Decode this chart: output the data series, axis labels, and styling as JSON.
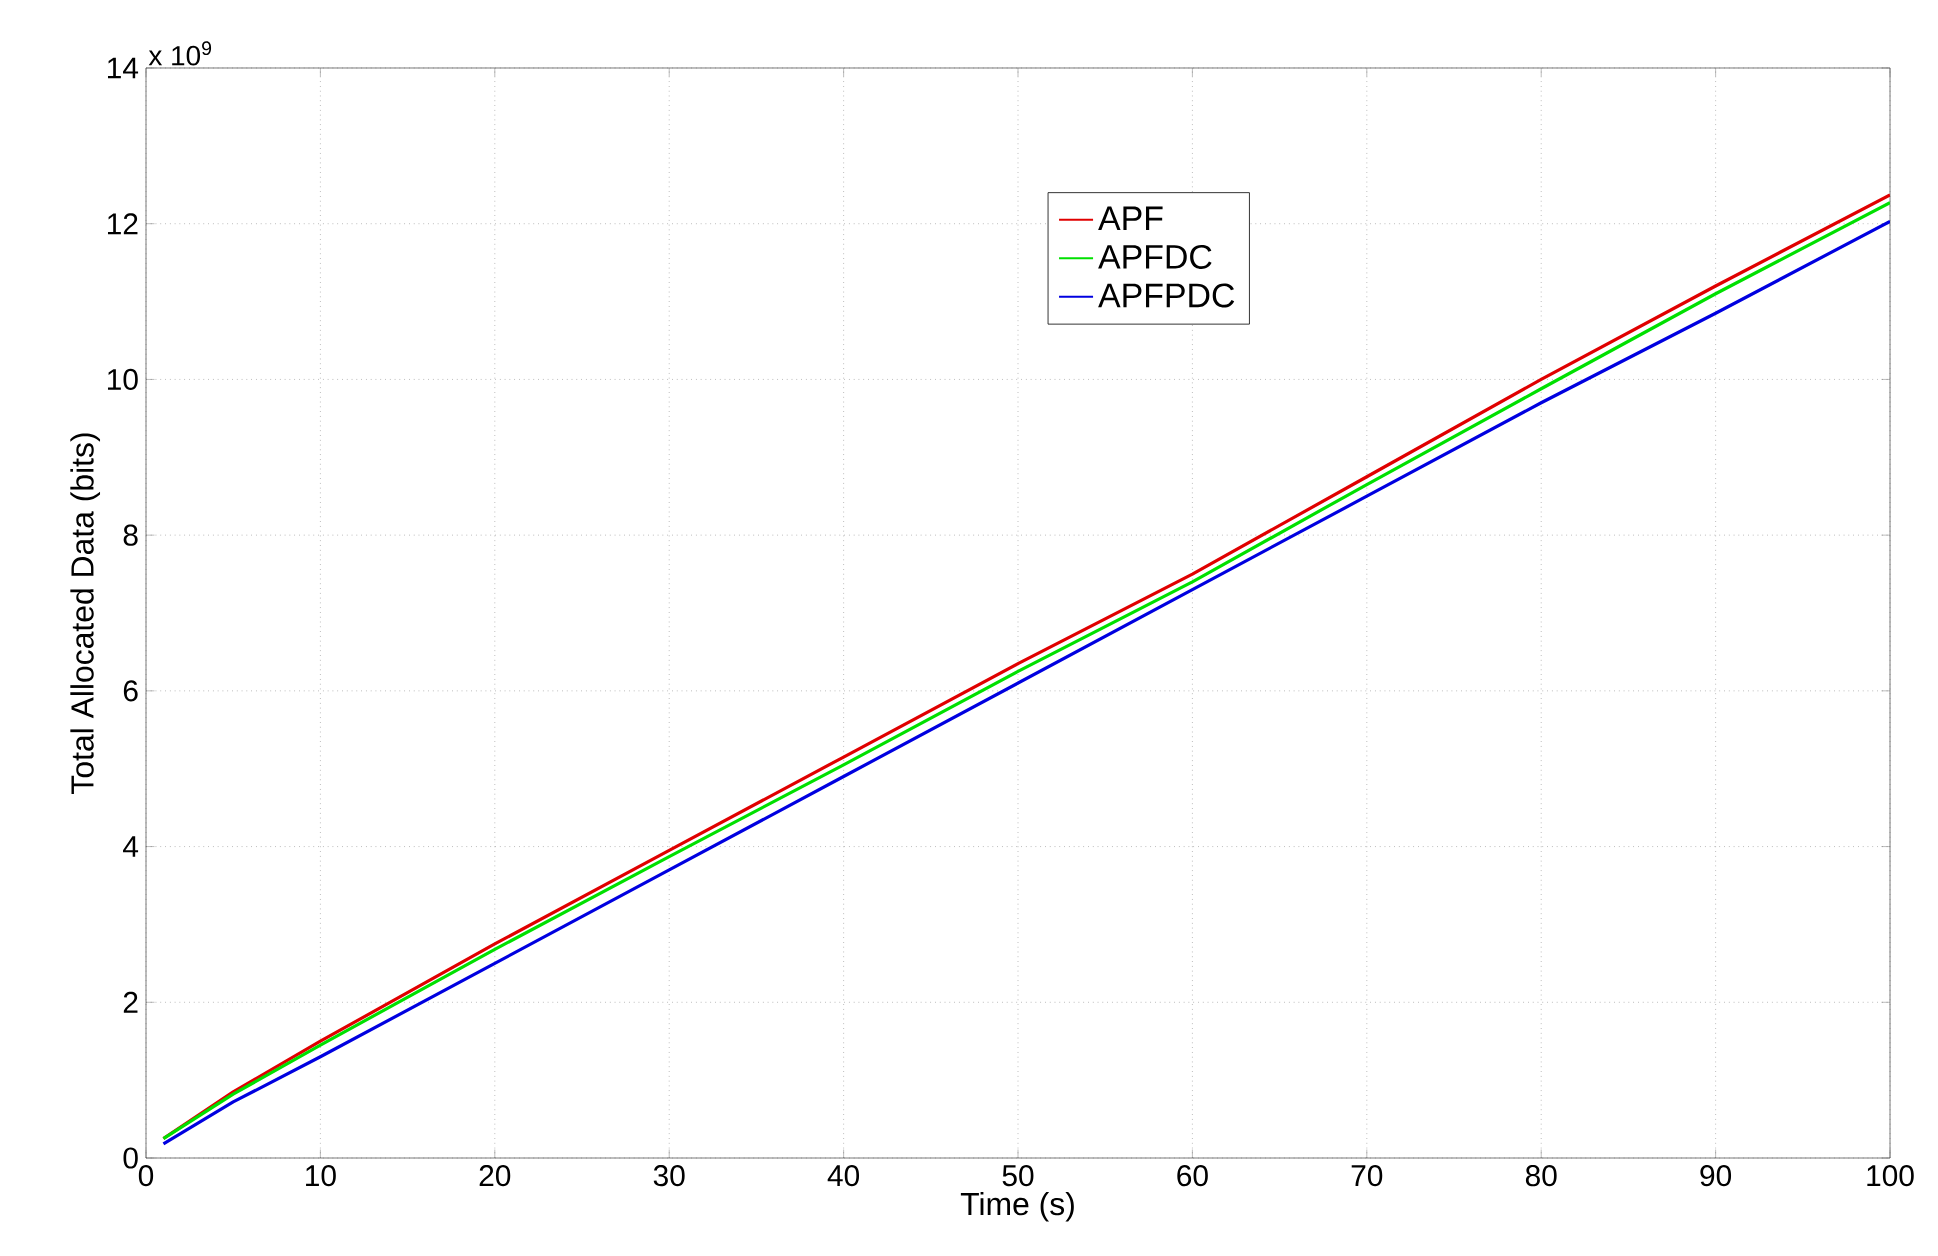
{
  "chart_data": {
    "type": "line",
    "xlabel": "Time (s)",
    "ylabel": "Total Allocated Data (bits)",
    "annotations": [
      "x 10$^{9}$"
    ],
    "xlim": [
      0,
      100
    ],
    "ylim": [
      0,
      14
    ],
    "xticks": [
      0,
      10,
      20,
      30,
      40,
      50,
      60,
      70,
      80,
      90,
      100
    ],
    "yticks": [
      0,
      2,
      4,
      6,
      8,
      10,
      12,
      14
    ],
    "grid": true,
    "legend": "top right",
    "marker": "none",
    "line_style": "solid",
    "series": [
      {
        "name": "APF",
        "color": "#e00000",
        "x": [
          1,
          5,
          10,
          20,
          30,
          40,
          50,
          60,
          70,
          80,
          90,
          100
        ],
        "values": [
          0.25,
          0.85,
          1.5,
          2.75,
          3.95,
          5.15,
          6.35,
          7.5,
          8.75,
          10.0,
          11.2,
          12.37
        ]
      },
      {
        "name": "APFDC",
        "color": "#00e000",
        "x": [
          1,
          5,
          10,
          20,
          30,
          40,
          50,
          60,
          70,
          80,
          90,
          100
        ],
        "values": [
          0.25,
          0.82,
          1.45,
          2.68,
          3.87,
          5.05,
          6.25,
          7.4,
          8.65,
          9.88,
          11.1,
          12.27
        ]
      },
      {
        "name": "APFPDC",
        "color": "#0000e0",
        "x": [
          1,
          5,
          10,
          20,
          30,
          40,
          50,
          60,
          70,
          80,
          90,
          100
        ],
        "values": [
          0.18,
          0.72,
          1.3,
          2.5,
          3.7,
          4.9,
          6.1,
          7.3,
          8.5,
          9.7,
          10.85,
          12.03
        ]
      }
    ]
  }
}
